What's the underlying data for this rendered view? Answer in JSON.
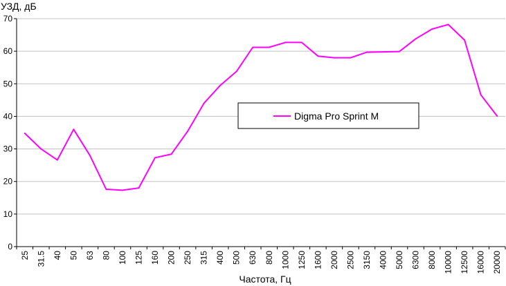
{
  "chart_data": {
    "type": "line",
    "ylabel": "УЗД, дБ",
    "xlabel": "Частота, Гц",
    "ylim": [
      0,
      70
    ],
    "yticks": [
      0,
      10,
      20,
      30,
      40,
      50,
      60,
      70
    ],
    "grid": "horizontal",
    "legend_position": "center-right",
    "categories": [
      "25",
      "31.5",
      "40",
      "50",
      "63",
      "80",
      "100",
      "125",
      "160",
      "200",
      "250",
      "315",
      "400",
      "500",
      "630",
      "800",
      "1000",
      "1250",
      "1600",
      "2000",
      "2500",
      "3150",
      "4000",
      "5000",
      "6300",
      "8000",
      "10000",
      "12500",
      "16000",
      "20000"
    ],
    "series": [
      {
        "name": "Digma Pro Sprint M",
        "color": "#ff00ff",
        "values": [
          34.8,
          30.0,
          26.6,
          36.0,
          28.0,
          17.6,
          17.3,
          18.0,
          27.3,
          28.4,
          35.4,
          44.0,
          49.5,
          53.8,
          61.2,
          61.2,
          62.7,
          62.7,
          58.5,
          58.0,
          58.0,
          59.7,
          59.8,
          59.9,
          63.8,
          66.8,
          68.2,
          63.4,
          46.6,
          40.1
        ]
      }
    ]
  }
}
